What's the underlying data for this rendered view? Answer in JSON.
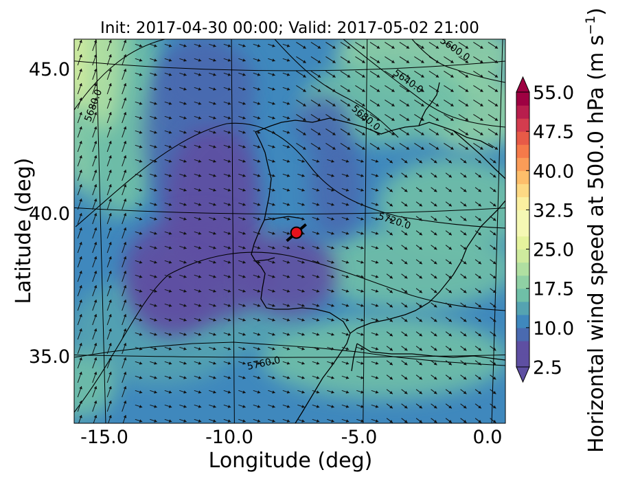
{
  "title": "Init: 2017-04-30 00:00; Valid: 2017-05-02 21:00",
  "xlabel": "Longitude (deg)",
  "ylabel": "Latitude (deg)",
  "x_ticks": [
    "-15.0",
    "-10.0",
    "-5.0",
    "0.0"
  ],
  "y_ticks": [
    "45.0",
    "40.0",
    "35.0"
  ],
  "colorbar": {
    "label": "Horizontal wind speed at 500.0 hPa (m s",
    "label_sup": "−1",
    "label_close": ")",
    "ticks": [
      "2.5",
      "10.0",
      "17.5",
      "25.0",
      "32.5",
      "40.0",
      "47.5",
      "55.0"
    ],
    "min": 2.5,
    "max": 55.0,
    "step": 2.5,
    "extend": "both",
    "colors": [
      "#5e4fa2",
      "#4a6ab0",
      "#3f88bd",
      "#55a3b1",
      "#6fbfa7",
      "#8fd0a4",
      "#b0dfa1",
      "#cfeb9e",
      "#e5f39d",
      "#f5f8b4",
      "#fbefa0",
      "#fdd984",
      "#fdbe6b",
      "#fa9c58",
      "#f57a4a",
      "#e75a47",
      "#d33c4e",
      "#b81e4d",
      "#9e0142"
    ],
    "under_color": "#5e4fa2",
    "over_color": "#9e0142"
  },
  "contour_labels": [
    "5600.0",
    "5640.0",
    "5680.0",
    "5680.0",
    "5720.0",
    "5760.0"
  ],
  "marker": {
    "lon": -7.6,
    "lat": 39.35,
    "color": "#e8121c"
  },
  "map_extent": {
    "lon": [
      -16.0,
      0.3
    ],
    "lat": [
      32.7,
      46.1
    ]
  },
  "chart_data": {
    "type": "heatmap",
    "title": "Init: 2017-04-30 00:00; Valid: 2017-05-02 21:00",
    "xlabel": "Longitude (deg)",
    "ylabel": "Latitude (deg)",
    "xlim": [
      -16.0,
      0.3
    ],
    "ylim": [
      32.7,
      46.1
    ],
    "colorbar_range": [
      2.5,
      55.0
    ]
  }
}
